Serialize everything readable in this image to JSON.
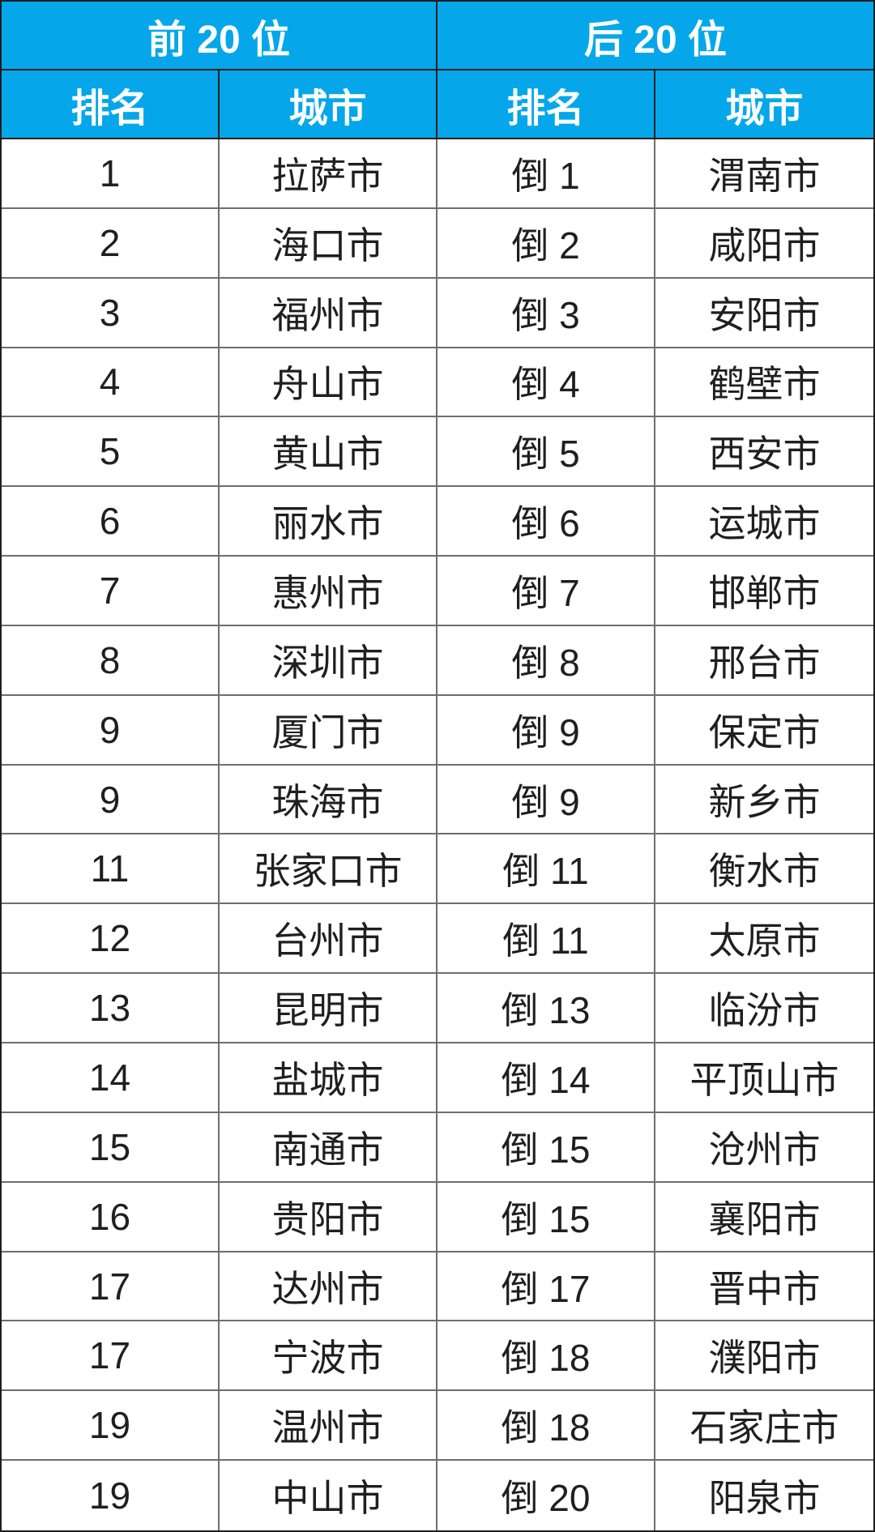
{
  "colors": {
    "header_bg": "#05a7ea",
    "header_text": "#ffffff",
    "body_text": "#1f1f1f",
    "grid_line": "#6e6e6e",
    "dark_line": "#1e1e1e"
  },
  "chart_data": {
    "type": "table",
    "title": "",
    "header_groups": [
      "前 20 位",
      "后 20 位"
    ],
    "columns": [
      "排名",
      "城市",
      "排名",
      "城市"
    ],
    "rows": [
      [
        "1",
        "拉萨市",
        "倒 1",
        "渭南市"
      ],
      [
        "2",
        "海口市",
        "倒 2",
        "咸阳市"
      ],
      [
        "3",
        "福州市",
        "倒 3",
        "安阳市"
      ],
      [
        "4",
        "舟山市",
        "倒 4",
        "鹤壁市"
      ],
      [
        "5",
        "黄山市",
        "倒 5",
        "西安市"
      ],
      [
        "6",
        "丽水市",
        "倒 6",
        "运城市"
      ],
      [
        "7",
        "惠州市",
        "倒 7",
        "邯郸市"
      ],
      [
        "8",
        "深圳市",
        "倒 8",
        "邢台市"
      ],
      [
        "9",
        "厦门市",
        "倒 9",
        "保定市"
      ],
      [
        "9",
        "珠海市",
        "倒 9",
        "新乡市"
      ],
      [
        "11",
        "张家口市",
        "倒 11",
        "衡水市"
      ],
      [
        "12",
        "台州市",
        "倒 11",
        "太原市"
      ],
      [
        "13",
        "昆明市",
        "倒 13",
        "临汾市"
      ],
      [
        "14",
        "盐城市",
        "倒 14",
        "平顶山市"
      ],
      [
        "15",
        "南通市",
        "倒 15",
        "沧州市"
      ],
      [
        "16",
        "贵阳市",
        "倒 15",
        "襄阳市"
      ],
      [
        "17",
        "达州市",
        "倒 17",
        "晋中市"
      ],
      [
        "17",
        "宁波市",
        "倒 18",
        "濮阳市"
      ],
      [
        "19",
        "温州市",
        "倒 18",
        "石家庄市"
      ],
      [
        "19",
        "中山市",
        "倒 20",
        "阳泉市"
      ]
    ]
  }
}
